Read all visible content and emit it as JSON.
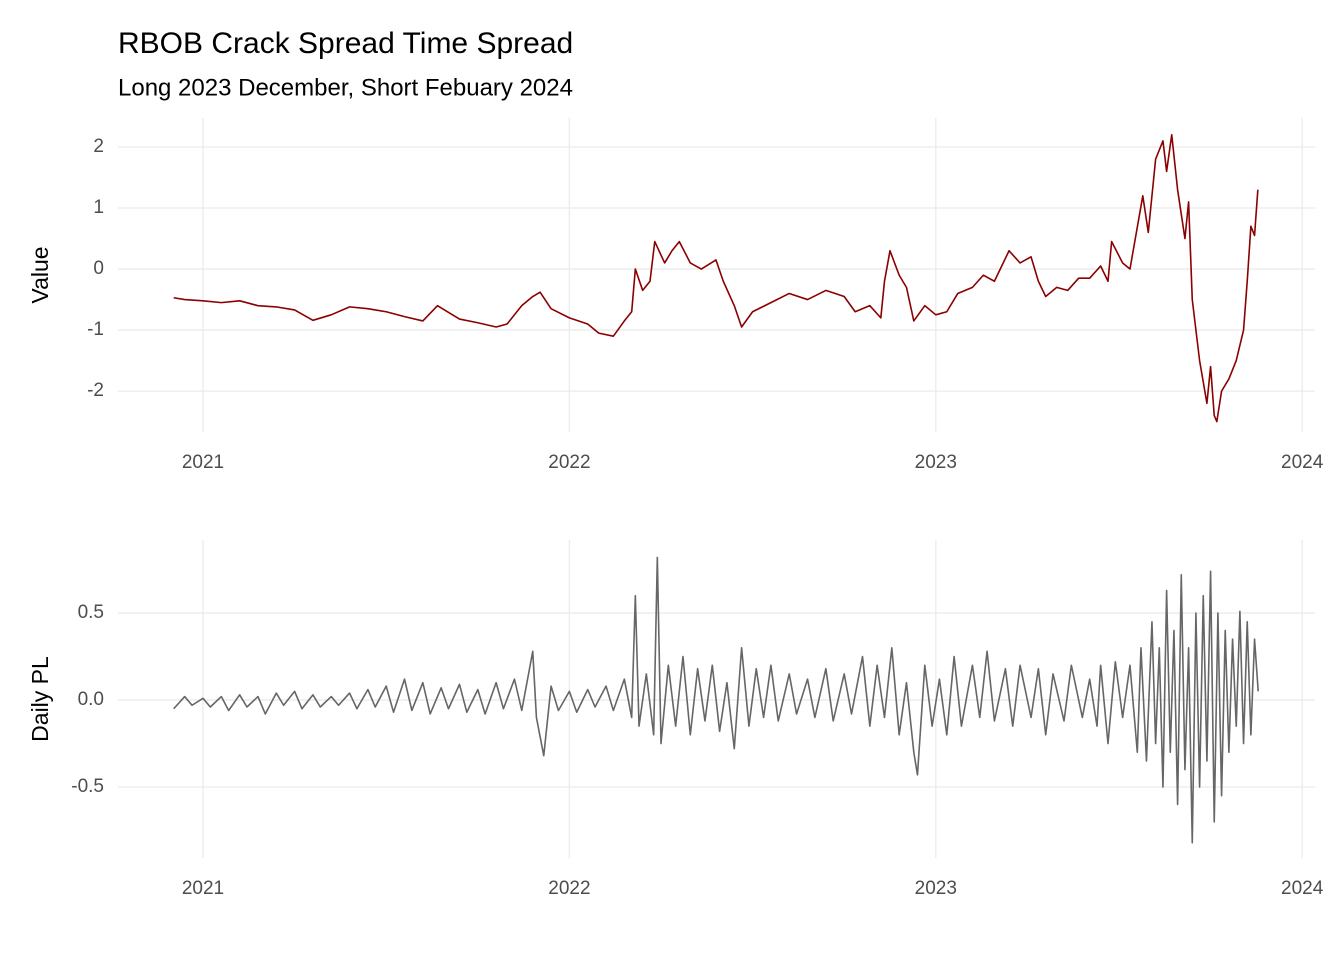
{
  "chart_data": [
    {
      "type": "line",
      "title": "RBOB Crack Spread Time Spread",
      "subtitle": "Long 2023 December, Short Febuary 2024",
      "y_label": "Value",
      "color": "#8b0000",
      "grid": true,
      "xlim": [
        2020.768,
        2024.035
      ],
      "xticks": [
        2021,
        2022,
        2023,
        2024
      ],
      "ylim": [
        -2.67,
        2.475
      ],
      "yticks": [
        -2,
        -1,
        0,
        1,
        2
      ],
      "x": [
        2020.92,
        2020.95,
        2021.0,
        2021.05,
        2021.1,
        2021.15,
        2021.2,
        2021.25,
        2021.3,
        2021.35,
        2021.4,
        2021.45,
        2021.5,
        2021.55,
        2021.6,
        2021.64,
        2021.7,
        2021.75,
        2021.8,
        2021.83,
        2021.87,
        2021.9,
        2021.92,
        2021.95,
        2022.0,
        2022.05,
        2022.08,
        2022.12,
        2022.15,
        2022.17,
        2022.18,
        2022.2,
        2022.22,
        2022.233,
        2022.26,
        2022.28,
        2022.3,
        2022.33,
        2022.36,
        2022.4,
        2022.42,
        2022.45,
        2022.47,
        2022.5,
        2022.55,
        2022.6,
        2022.65,
        2022.7,
        2022.75,
        2022.78,
        2022.82,
        2022.85,
        2022.86,
        2022.875,
        2022.9,
        2022.92,
        2022.94,
        2022.97,
        2023.0,
        2023.03,
        2023.06,
        2023.1,
        2023.13,
        2023.16,
        2023.2,
        2023.23,
        2023.26,
        2023.28,
        2023.3,
        2023.33,
        2023.36,
        2023.39,
        2023.42,
        2023.45,
        2023.47,
        2023.48,
        2023.51,
        2023.53,
        2023.565,
        2023.58,
        2023.6,
        2023.62,
        2023.63,
        2023.644,
        2023.66,
        2023.68,
        2023.69,
        2023.7,
        2023.72,
        2023.74,
        2023.75,
        2023.76,
        2023.767,
        2023.78,
        2023.8,
        2023.82,
        2023.84,
        2023.85,
        2023.86,
        2023.87,
        2023.879
      ],
      "values": [
        -0.47,
        -0.5,
        -0.52,
        -0.55,
        -0.52,
        -0.6,
        -0.62,
        -0.67,
        -0.84,
        -0.75,
        -0.62,
        -0.65,
        -0.7,
        -0.78,
        -0.85,
        -0.6,
        -0.82,
        -0.88,
        -0.95,
        -0.9,
        -0.6,
        -0.45,
        -0.38,
        -0.65,
        -0.8,
        -0.9,
        -1.05,
        -1.1,
        -0.85,
        -0.7,
        0.0,
        -0.35,
        -0.2,
        0.45,
        0.1,
        0.3,
        0.45,
        0.1,
        0.0,
        0.15,
        -0.2,
        -0.6,
        -0.95,
        -0.7,
        -0.55,
        -0.4,
        -0.5,
        -0.35,
        -0.45,
        -0.7,
        -0.6,
        -0.8,
        -0.2,
        0.3,
        -0.1,
        -0.3,
        -0.85,
        -0.6,
        -0.75,
        -0.7,
        -0.4,
        -0.3,
        -0.1,
        -0.2,
        0.3,
        0.1,
        0.2,
        -0.2,
        -0.45,
        -0.3,
        -0.35,
        -0.15,
        -0.15,
        0.05,
        -0.2,
        0.45,
        0.1,
        0.0,
        1.2,
        0.6,
        1.8,
        2.1,
        1.6,
        2.2,
        1.3,
        0.5,
        1.1,
        -0.5,
        -1.5,
        -2.2,
        -1.6,
        -2.4,
        -2.5,
        -2.0,
        -1.8,
        -1.5,
        -1.0,
        -0.2,
        0.7,
        0.55,
        1.3
      ]
    },
    {
      "type": "line",
      "y_label": "Daily PL",
      "color": "#666666",
      "grid": true,
      "xlim": [
        2020.768,
        2024.035
      ],
      "xticks": [
        2021,
        2022,
        2023,
        2024
      ],
      "ylim": [
        -0.908,
        0.92
      ],
      "yticks": [
        {
          "value": -0.5,
          "label": "-0.5"
        },
        {
          "value": 0,
          "label": "0.0"
        },
        {
          "value": 0.5,
          "label": "0.5"
        }
      ],
      "x": [
        2020.92,
        2020.95,
        2020.97,
        2021.0,
        2021.02,
        2021.05,
        2021.07,
        2021.1,
        2021.12,
        2021.15,
        2021.17,
        2021.2,
        2021.22,
        2021.25,
        2021.27,
        2021.3,
        2021.32,
        2021.35,
        2021.37,
        2021.4,
        2021.42,
        2021.45,
        2021.47,
        2021.5,
        2021.52,
        2021.55,
        2021.57,
        2021.6,
        2021.62,
        2021.65,
        2021.67,
        2021.7,
        2021.72,
        2021.75,
        2021.77,
        2021.8,
        2021.82,
        2021.85,
        2021.87,
        2021.9,
        2021.91,
        2021.93,
        2021.95,
        2021.97,
        2022.0,
        2022.02,
        2022.05,
        2022.07,
        2022.1,
        2022.12,
        2022.15,
        2022.17,
        2022.18,
        2022.19,
        2022.21,
        2022.23,
        2022.24,
        2022.25,
        2022.27,
        2022.29,
        2022.31,
        2022.33,
        2022.35,
        2022.37,
        2022.39,
        2022.41,
        2022.43,
        2022.45,
        2022.47,
        2022.49,
        2022.51,
        2022.53,
        2022.55,
        2022.57,
        2022.6,
        2022.62,
        2022.65,
        2022.67,
        2022.7,
        2022.72,
        2022.75,
        2022.77,
        2022.8,
        2022.82,
        2022.84,
        2022.86,
        2022.88,
        2022.9,
        2022.92,
        2022.94,
        2022.95,
        2022.97,
        2022.99,
        2023.01,
        2023.03,
        2023.05,
        2023.07,
        2023.1,
        2023.12,
        2023.14,
        2023.16,
        2023.19,
        2023.21,
        2023.23,
        2023.26,
        2023.28,
        2023.3,
        2023.32,
        2023.35,
        2023.37,
        2023.4,
        2023.42,
        2023.44,
        2023.45,
        2023.47,
        2023.49,
        2023.51,
        2023.53,
        2023.55,
        2023.56,
        2023.575,
        2023.59,
        2023.6,
        2023.61,
        2023.62,
        2023.63,
        2023.64,
        2023.65,
        2023.66,
        2023.67,
        2023.68,
        2023.69,
        2023.7,
        2023.71,
        2023.72,
        2023.73,
        2023.74,
        2023.75,
        2023.76,
        2023.77,
        2023.78,
        2023.79,
        2023.8,
        2023.81,
        2023.82,
        2023.83,
        2023.84,
        2023.85,
        2023.86,
        2023.87,
        2023.88
      ],
      "values": [
        -0.05,
        0.02,
        -0.03,
        0.01,
        -0.04,
        0.02,
        -0.06,
        0.03,
        -0.04,
        0.02,
        -0.08,
        0.04,
        -0.03,
        0.05,
        -0.05,
        0.03,
        -0.04,
        0.02,
        -0.03,
        0.04,
        -0.05,
        0.06,
        -0.04,
        0.08,
        -0.07,
        0.12,
        -0.06,
        0.1,
        -0.08,
        0.07,
        -0.05,
        0.09,
        -0.07,
        0.06,
        -0.08,
        0.1,
        -0.05,
        0.12,
        -0.06,
        0.28,
        -0.1,
        -0.32,
        0.08,
        -0.06,
        0.05,
        -0.07,
        0.06,
        -0.04,
        0.08,
        -0.06,
        0.12,
        -0.1,
        0.6,
        -0.15,
        0.15,
        -0.2,
        0.82,
        -0.25,
        0.2,
        -0.15,
        0.25,
        -0.2,
        0.18,
        -0.12,
        0.2,
        -0.18,
        0.1,
        -0.28,
        0.3,
        -0.15,
        0.18,
        -0.1,
        0.2,
        -0.12,
        0.15,
        -0.08,
        0.12,
        -0.1,
        0.18,
        -0.12,
        0.15,
        -0.08,
        0.25,
        -0.15,
        0.2,
        -0.1,
        0.3,
        -0.2,
        0.1,
        -0.3,
        -0.43,
        0.2,
        -0.15,
        0.12,
        -0.2,
        0.25,
        -0.15,
        0.2,
        -0.1,
        0.28,
        -0.12,
        0.18,
        -0.15,
        0.2,
        -0.1,
        0.18,
        -0.2,
        0.15,
        -0.12,
        0.2,
        -0.1,
        0.12,
        -0.15,
        0.2,
        -0.25,
        0.22,
        -0.1,
        0.2,
        -0.3,
        0.3,
        -0.35,
        0.45,
        -0.25,
        0.3,
        -0.5,
        0.63,
        -0.3,
        0.4,
        -0.6,
        0.72,
        -0.4,
        0.3,
        -0.82,
        0.5,
        -0.5,
        0.6,
        -0.35,
        0.74,
        -0.7,
        0.5,
        -0.55,
        0.4,
        -0.3,
        0.35,
        -0.15,
        0.51,
        -0.25,
        0.45,
        -0.2,
        0.35,
        0.05
      ]
    }
  ]
}
